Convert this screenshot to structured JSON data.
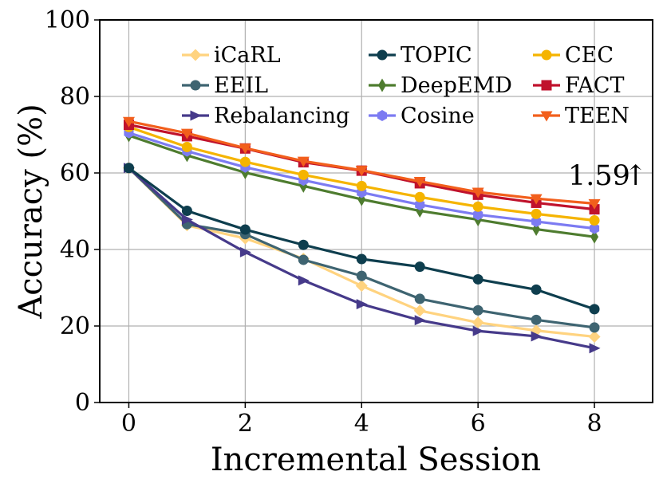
{
  "chart_data": {
    "type": "line",
    "title": "",
    "xlabel": "Incremental Session",
    "ylabel": "Accuracy (%)",
    "x": [
      0,
      1,
      2,
      3,
      4,
      5,
      6,
      7,
      8
    ],
    "xlim": [
      -0.5,
      9.0
    ],
    "ylim": [
      0,
      100
    ],
    "xticks": [
      0,
      2,
      4,
      6,
      8
    ],
    "yticks": [
      0,
      20,
      40,
      60,
      80,
      100
    ],
    "grid": true,
    "legend": "top, 3 columns",
    "annotation": {
      "text": "1.59",
      "arrow": "↑"
    },
    "series": [
      {
        "name": "iCaRL",
        "color": "#FFD37F",
        "marker": "diamond",
        "values": [
          61.3,
          46.3,
          42.9,
          37.6,
          30.5,
          24.0,
          20.9,
          18.8,
          17.2
        ]
      },
      {
        "name": "EEIL",
        "color": "#3E6471",
        "marker": "circle",
        "values": [
          61.3,
          46.6,
          44.0,
          37.3,
          33.1,
          27.1,
          24.1,
          21.6,
          19.6
        ]
      },
      {
        "name": "Rebalancing",
        "color": "#463A8A",
        "marker": "triangle-right",
        "values": [
          61.3,
          47.8,
          39.3,
          31.9,
          25.7,
          21.5,
          18.7,
          17.3,
          14.2
        ]
      },
      {
        "name": "TOPIC",
        "color": "#0E3E4E",
        "marker": "circle",
        "values": [
          61.3,
          50.1,
          45.2,
          41.2,
          37.5,
          35.5,
          32.2,
          29.5,
          24.4
        ]
      },
      {
        "name": "DeepEMD",
        "color": "#4E7C2F",
        "marker": "thin-diamond",
        "values": [
          69.8,
          64.6,
          60.1,
          56.6,
          53.1,
          50.1,
          47.8,
          45.3,
          43.3
        ]
      },
      {
        "name": "Cosine",
        "color": "#7C7BF2",
        "marker": "hexagon",
        "values": [
          70.5,
          65.7,
          61.5,
          58.1,
          54.9,
          51.7,
          49.1,
          47.3,
          45.5
        ]
      },
      {
        "name": "CEC",
        "color": "#F5B400",
        "marker": "circle",
        "values": [
          72.0,
          66.8,
          62.9,
          59.5,
          56.6,
          53.7,
          51.2,
          49.3,
          47.6
        ]
      },
      {
        "name": "FACT",
        "color": "#C0122C",
        "marker": "square",
        "values": [
          72.6,
          69.6,
          66.4,
          62.8,
          60.6,
          57.3,
          54.3,
          52.2,
          50.5
        ]
      },
      {
        "name": "TEEN",
        "color": "#F25F1C",
        "marker": "triangle-down",
        "values": [
          73.5,
          70.4,
          66.5,
          63.1,
          60.7,
          57.8,
          55.0,
          53.3,
          52.0
        ]
      }
    ]
  }
}
